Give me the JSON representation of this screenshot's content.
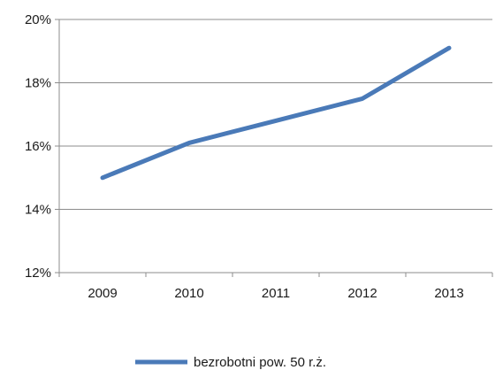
{
  "chart_data": {
    "type": "line",
    "title": "",
    "xlabel": "",
    "ylabel": "",
    "categories": [
      "2009",
      "2010",
      "2011",
      "2012",
      "2013"
    ],
    "series": [
      {
        "name": "bezrobotni pow. 50 r.ż.",
        "values": [
          15.0,
          16.1,
          16.8,
          17.5,
          19.1
        ],
        "color": "#4a7ab8"
      }
    ],
    "y_ticks": [
      12,
      14,
      16,
      18,
      20
    ],
    "y_tick_labels": [
      "12%",
      "14%",
      "16%",
      "18%",
      "20%"
    ],
    "ylim": [
      12,
      20
    ],
    "y_unit": "%",
    "grid": "horizontal",
    "legend_position": "bottom"
  }
}
